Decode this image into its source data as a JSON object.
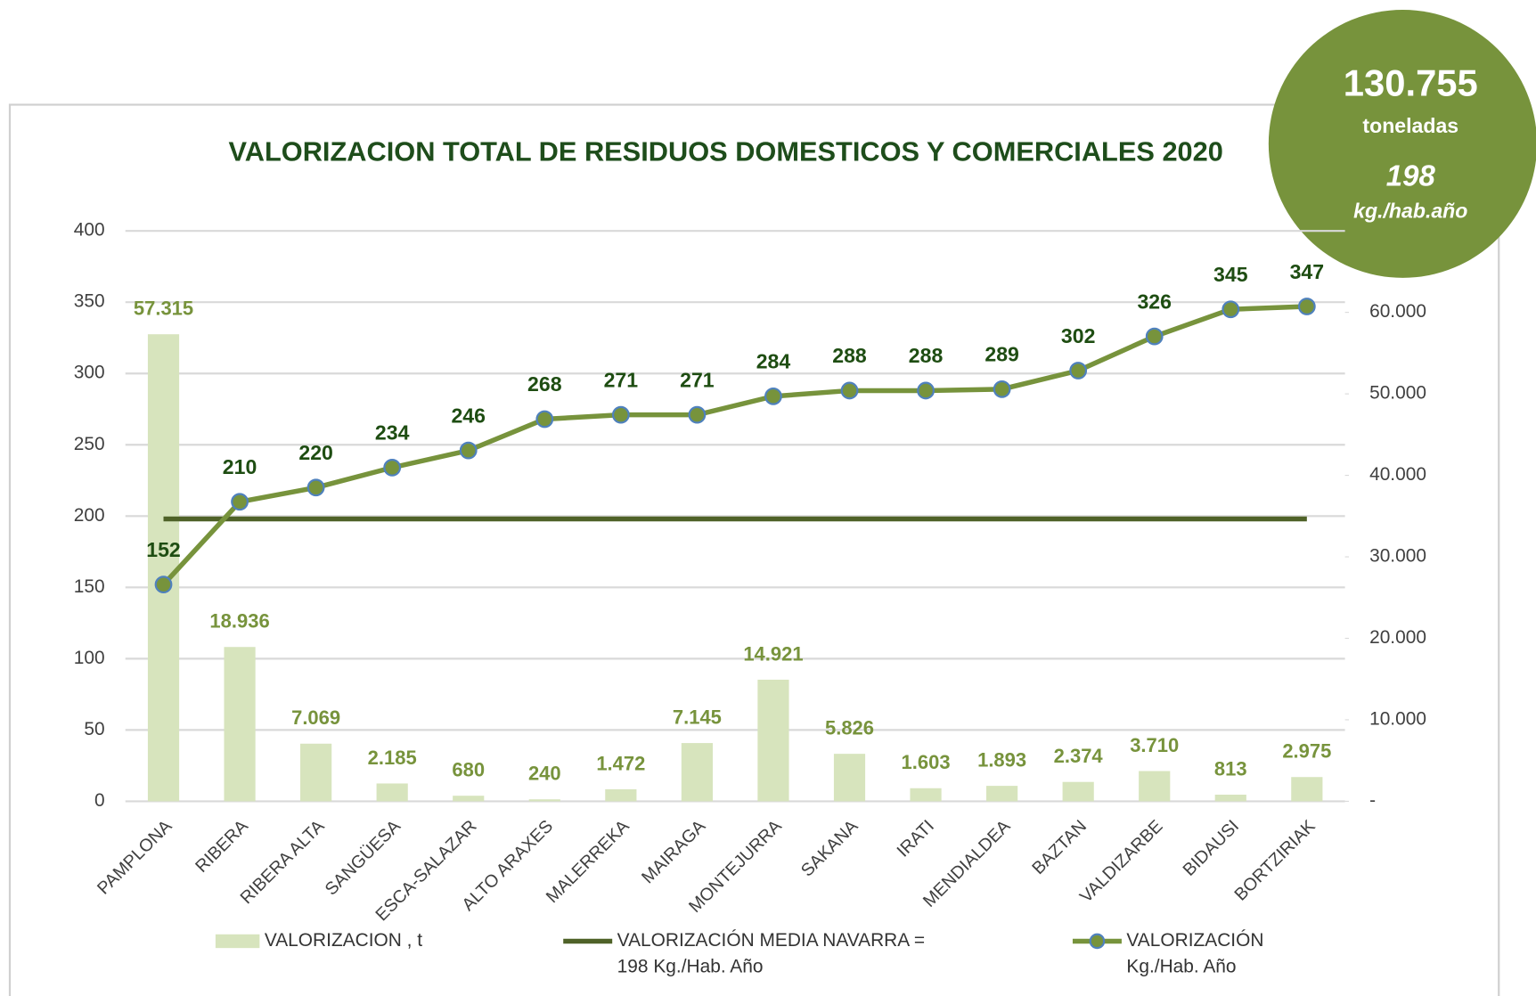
{
  "chart_data": {
    "type": "bar_line",
    "title": "VALORIZACION TOTAL DE RESIDUOS DOMESTICOS Y COMERCIALES 2020",
    "badge": {
      "total": "130.755",
      "unit": "toneladas",
      "per_capita": "198",
      "per_capita_unit": "kg./hab.año"
    },
    "categories": [
      "PAMPLONA",
      "RIBERA",
      "RIBERA ALTA",
      "SANGÜESA",
      "ESCA-SALAZAR",
      "ALTO ARAXES",
      "MALERREKA",
      "MAIRAGA",
      "MONTEJURRA",
      "SAKANA",
      "IRATI",
      "MENDIALDEA",
      "BAZTAN",
      "VALDIZARBE",
      "BIDAUSI",
      "BORTZIRIAK"
    ],
    "series": [
      {
        "name": "VALORIZACION , t",
        "type": "bar",
        "axis": "y2",
        "color": "#d7e4bd",
        "label_color": "#77933c",
        "values": [
          57315,
          18936,
          7069,
          2185,
          680,
          240,
          1472,
          7145,
          14921,
          5826,
          1603,
          1893,
          2374,
          3710,
          813,
          2975
        ],
        "value_labels": [
          "57.315",
          "18.936",
          "7.069",
          "2.185",
          "680",
          "240",
          "1.472",
          "7.145",
          "14.921",
          "5.826",
          "1.603",
          "1.893",
          "2.374",
          "3.710",
          "813",
          "2.975"
        ]
      },
      {
        "name": "VALORIZACIÓN MEDIA NAVARRA =\n198 Kg./Hab. Año",
        "type": "line",
        "color": "#4f6228",
        "values": [
          198,
          198,
          198,
          198,
          198,
          198,
          198,
          198,
          198,
          198,
          198,
          198,
          198,
          198,
          198,
          198
        ]
      },
      {
        "name": "VALORIZACIÓN\nKg./Hab. Año",
        "type": "line_markers",
        "color": "#77933c",
        "marker_stroke": "#4f81bd",
        "label_color": "#1e4d12",
        "values": [
          152,
          210,
          220,
          234,
          246,
          268,
          271,
          271,
          284,
          288,
          288,
          289,
          302,
          326,
          345,
          347
        ]
      }
    ],
    "ylim": [
      0,
      400
    ],
    "yticks": [
      0,
      50,
      100,
      150,
      200,
      250,
      300,
      350,
      400
    ],
    "y2lim": [
      0,
      70000
    ],
    "y2ticks": [
      {
        "value": 0,
        "label": "-"
      },
      {
        "value": 10000,
        "label": "10.000"
      },
      {
        "value": 20000,
        "label": "20.000"
      },
      {
        "value": 30000,
        "label": "30.000"
      },
      {
        "value": 40000,
        "label": "40.000"
      },
      {
        "value": 50000,
        "label": "50.000"
      },
      {
        "value": 60000,
        "label": "60.000"
      }
    ],
    "grid": true
  }
}
